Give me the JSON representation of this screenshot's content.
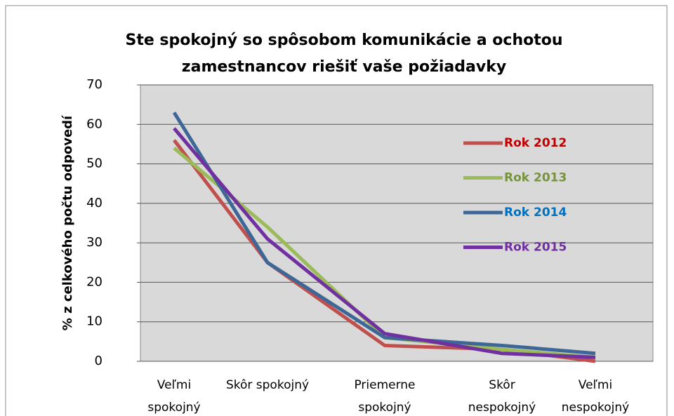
{
  "chart_data": {
    "type": "line",
    "title": [
      "Ste spokojný so spôsobom komunikácie a ochotou",
      "zamestnancov riešiť vaše požiadavky"
    ],
    "y_label": "% z celkového počtu odpovedí",
    "categories": [
      [
        "Veľmi",
        "spokojný"
      ],
      [
        "Skôr spokojný"
      ],
      [
        "Priemerne",
        "spokojný"
      ],
      [
        "Skôr",
        "nespokojný"
      ],
      [
        "Veľmi",
        "nespokojný"
      ]
    ],
    "series": [
      {
        "name": "Rok  2012",
        "color": "#c0504d",
        "label_color": "#c00000",
        "values": [
          56,
          25,
          4,
          3,
          0
        ]
      },
      {
        "name": "Rok  2013",
        "color": "#9bbb59",
        "label_color": "#77933c",
        "values": [
          54,
          34,
          6,
          3,
          1
        ]
      },
      {
        "name": "Rok  2014",
        "color": "#3d6797",
        "label_color": "#0070c0",
        "values": [
          63,
          25,
          6,
          4,
          2
        ]
      },
      {
        "name": "Rok  2015",
        "color": "#7030a0",
        "label_color": "#7030a0",
        "values": [
          59,
          31,
          7,
          2,
          1
        ]
      }
    ],
    "ylim": [
      0,
      70
    ],
    "yticks": [
      0,
      10,
      20,
      30,
      40,
      50,
      60,
      70
    ],
    "grid": true,
    "legend": "right"
  }
}
